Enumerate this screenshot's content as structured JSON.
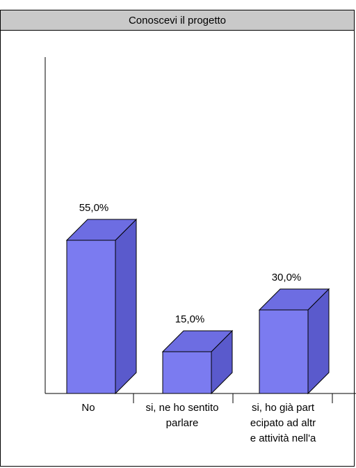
{
  "chart_data": {
    "type": "bar",
    "title": "Conoscevi il progetto",
    "categories": [
      [
        "No"
      ],
      [
        "si, ne ho sentito",
        "parlare"
      ],
      [
        "si, ho già part",
        "ecipato ad altr",
        "e attività nell'a"
      ]
    ],
    "values": [
      55.0,
      15.0,
      30.0
    ],
    "value_labels": [
      "55,0%",
      "15,0%",
      "30,0%"
    ],
    "xlabel": "",
    "ylabel": "",
    "ylim": [
      0,
      100
    ],
    "grid": false,
    "legend": "none",
    "bar_color": "#7b7bf0",
    "bar_side_color": "#5a5acc",
    "bar_top_color": "#6d6de2"
  }
}
